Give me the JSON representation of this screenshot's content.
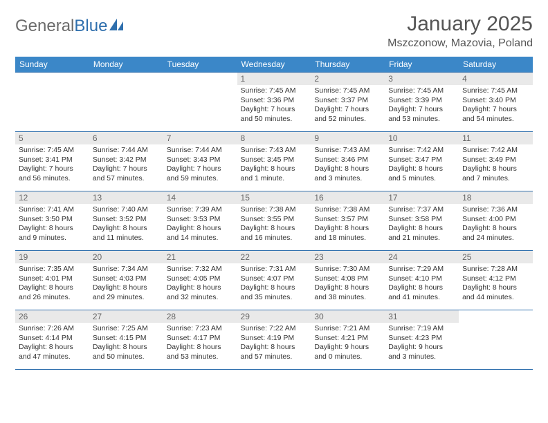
{
  "logo": {
    "text1": "General",
    "text2": "Blue"
  },
  "title": "January 2025",
  "location": "Mszczonow, Mazovia, Poland",
  "colors": {
    "header_bg": "#3b87c8",
    "header_text": "#ffffff",
    "border": "#2f6fad",
    "daynum_bg": "#e9e9e9",
    "daynum_text": "#666666",
    "body_text": "#333333",
    "title_text": "#555555",
    "logo_gray": "#6b6b6b",
    "logo_blue": "#2f6fad"
  },
  "dayHeaders": [
    "Sunday",
    "Monday",
    "Tuesday",
    "Wednesday",
    "Thursday",
    "Friday",
    "Saturday"
  ],
  "weeks": [
    [
      {
        "n": "",
        "sr": "",
        "ss": "",
        "dl1": "",
        "dl2": "",
        "empty": true
      },
      {
        "n": "",
        "sr": "",
        "ss": "",
        "dl1": "",
        "dl2": "",
        "empty": true
      },
      {
        "n": "",
        "sr": "",
        "ss": "",
        "dl1": "",
        "dl2": "",
        "empty": true
      },
      {
        "n": "1",
        "sr": "Sunrise: 7:45 AM",
        "ss": "Sunset: 3:36 PM",
        "dl1": "Daylight: 7 hours",
        "dl2": "and 50 minutes."
      },
      {
        "n": "2",
        "sr": "Sunrise: 7:45 AM",
        "ss": "Sunset: 3:37 PM",
        "dl1": "Daylight: 7 hours",
        "dl2": "and 52 minutes."
      },
      {
        "n": "3",
        "sr": "Sunrise: 7:45 AM",
        "ss": "Sunset: 3:39 PM",
        "dl1": "Daylight: 7 hours",
        "dl2": "and 53 minutes."
      },
      {
        "n": "4",
        "sr": "Sunrise: 7:45 AM",
        "ss": "Sunset: 3:40 PM",
        "dl1": "Daylight: 7 hours",
        "dl2": "and 54 minutes."
      }
    ],
    [
      {
        "n": "5",
        "sr": "Sunrise: 7:45 AM",
        "ss": "Sunset: 3:41 PM",
        "dl1": "Daylight: 7 hours",
        "dl2": "and 56 minutes."
      },
      {
        "n": "6",
        "sr": "Sunrise: 7:44 AM",
        "ss": "Sunset: 3:42 PM",
        "dl1": "Daylight: 7 hours",
        "dl2": "and 57 minutes."
      },
      {
        "n": "7",
        "sr": "Sunrise: 7:44 AM",
        "ss": "Sunset: 3:43 PM",
        "dl1": "Daylight: 7 hours",
        "dl2": "and 59 minutes."
      },
      {
        "n": "8",
        "sr": "Sunrise: 7:43 AM",
        "ss": "Sunset: 3:45 PM",
        "dl1": "Daylight: 8 hours",
        "dl2": "and 1 minute."
      },
      {
        "n": "9",
        "sr": "Sunrise: 7:43 AM",
        "ss": "Sunset: 3:46 PM",
        "dl1": "Daylight: 8 hours",
        "dl2": "and 3 minutes."
      },
      {
        "n": "10",
        "sr": "Sunrise: 7:42 AM",
        "ss": "Sunset: 3:47 PM",
        "dl1": "Daylight: 8 hours",
        "dl2": "and 5 minutes."
      },
      {
        "n": "11",
        "sr": "Sunrise: 7:42 AM",
        "ss": "Sunset: 3:49 PM",
        "dl1": "Daylight: 8 hours",
        "dl2": "and 7 minutes."
      }
    ],
    [
      {
        "n": "12",
        "sr": "Sunrise: 7:41 AM",
        "ss": "Sunset: 3:50 PM",
        "dl1": "Daylight: 8 hours",
        "dl2": "and 9 minutes."
      },
      {
        "n": "13",
        "sr": "Sunrise: 7:40 AM",
        "ss": "Sunset: 3:52 PM",
        "dl1": "Daylight: 8 hours",
        "dl2": "and 11 minutes."
      },
      {
        "n": "14",
        "sr": "Sunrise: 7:39 AM",
        "ss": "Sunset: 3:53 PM",
        "dl1": "Daylight: 8 hours",
        "dl2": "and 14 minutes."
      },
      {
        "n": "15",
        "sr": "Sunrise: 7:38 AM",
        "ss": "Sunset: 3:55 PM",
        "dl1": "Daylight: 8 hours",
        "dl2": "and 16 minutes."
      },
      {
        "n": "16",
        "sr": "Sunrise: 7:38 AM",
        "ss": "Sunset: 3:57 PM",
        "dl1": "Daylight: 8 hours",
        "dl2": "and 18 minutes."
      },
      {
        "n": "17",
        "sr": "Sunrise: 7:37 AM",
        "ss": "Sunset: 3:58 PM",
        "dl1": "Daylight: 8 hours",
        "dl2": "and 21 minutes."
      },
      {
        "n": "18",
        "sr": "Sunrise: 7:36 AM",
        "ss": "Sunset: 4:00 PM",
        "dl1": "Daylight: 8 hours",
        "dl2": "and 24 minutes."
      }
    ],
    [
      {
        "n": "19",
        "sr": "Sunrise: 7:35 AM",
        "ss": "Sunset: 4:01 PM",
        "dl1": "Daylight: 8 hours",
        "dl2": "and 26 minutes."
      },
      {
        "n": "20",
        "sr": "Sunrise: 7:34 AM",
        "ss": "Sunset: 4:03 PM",
        "dl1": "Daylight: 8 hours",
        "dl2": "and 29 minutes."
      },
      {
        "n": "21",
        "sr": "Sunrise: 7:32 AM",
        "ss": "Sunset: 4:05 PM",
        "dl1": "Daylight: 8 hours",
        "dl2": "and 32 minutes."
      },
      {
        "n": "22",
        "sr": "Sunrise: 7:31 AM",
        "ss": "Sunset: 4:07 PM",
        "dl1": "Daylight: 8 hours",
        "dl2": "and 35 minutes."
      },
      {
        "n": "23",
        "sr": "Sunrise: 7:30 AM",
        "ss": "Sunset: 4:08 PM",
        "dl1": "Daylight: 8 hours",
        "dl2": "and 38 minutes."
      },
      {
        "n": "24",
        "sr": "Sunrise: 7:29 AM",
        "ss": "Sunset: 4:10 PM",
        "dl1": "Daylight: 8 hours",
        "dl2": "and 41 minutes."
      },
      {
        "n": "25",
        "sr": "Sunrise: 7:28 AM",
        "ss": "Sunset: 4:12 PM",
        "dl1": "Daylight: 8 hours",
        "dl2": "and 44 minutes."
      }
    ],
    [
      {
        "n": "26",
        "sr": "Sunrise: 7:26 AM",
        "ss": "Sunset: 4:14 PM",
        "dl1": "Daylight: 8 hours",
        "dl2": "and 47 minutes."
      },
      {
        "n": "27",
        "sr": "Sunrise: 7:25 AM",
        "ss": "Sunset: 4:15 PM",
        "dl1": "Daylight: 8 hours",
        "dl2": "and 50 minutes."
      },
      {
        "n": "28",
        "sr": "Sunrise: 7:23 AM",
        "ss": "Sunset: 4:17 PM",
        "dl1": "Daylight: 8 hours",
        "dl2": "and 53 minutes."
      },
      {
        "n": "29",
        "sr": "Sunrise: 7:22 AM",
        "ss": "Sunset: 4:19 PM",
        "dl1": "Daylight: 8 hours",
        "dl2": "and 57 minutes."
      },
      {
        "n": "30",
        "sr": "Sunrise: 7:21 AM",
        "ss": "Sunset: 4:21 PM",
        "dl1": "Daylight: 9 hours",
        "dl2": "and 0 minutes."
      },
      {
        "n": "31",
        "sr": "Sunrise: 7:19 AM",
        "ss": "Sunset: 4:23 PM",
        "dl1": "Daylight: 9 hours",
        "dl2": "and 3 minutes."
      },
      {
        "n": "",
        "sr": "",
        "ss": "",
        "dl1": "",
        "dl2": "",
        "empty": true
      }
    ]
  ]
}
